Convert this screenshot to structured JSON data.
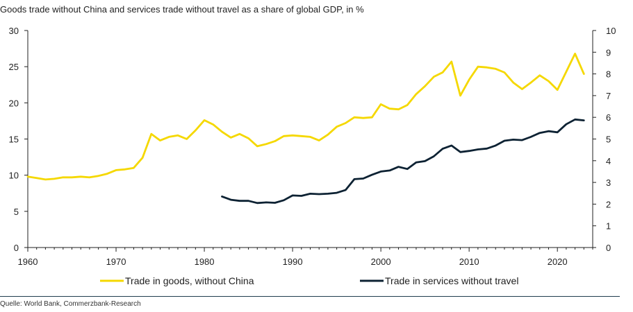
{
  "chart_data": {
    "type": "line",
    "title": "Goods trade without China and services trade without travel as a share of global GDP, in %",
    "source": "Quelle: World Bank, Commerzbank-Research",
    "x_ticks": [
      "1960",
      "1970",
      "1980",
      "1990",
      "2000",
      "2010",
      "2020"
    ],
    "y_left": {
      "ticks": [
        "0",
        "5",
        "10",
        "15",
        "20",
        "25",
        "30"
      ],
      "range": [
        0,
        30
      ]
    },
    "y_right": {
      "ticks": [
        "0",
        "1",
        "2",
        "3",
        "4",
        "5",
        "6",
        "7",
        "8",
        "9",
        "10"
      ],
      "range": [
        0,
        10
      ]
    },
    "xlim": [
      1960,
      2024
    ],
    "grid": false,
    "legend_position": "bottom",
    "series": [
      {
        "name": "Trade in goods, without China",
        "axis": "left",
        "color": "#f5d800",
        "x": [
          1960,
          1961,
          1962,
          1963,
          1964,
          1965,
          1966,
          1967,
          1968,
          1969,
          1970,
          1971,
          1972,
          1973,
          1974,
          1975,
          1976,
          1977,
          1978,
          1979,
          1980,
          1981,
          1982,
          1983,
          1984,
          1985,
          1986,
          1987,
          1988,
          1989,
          1990,
          1991,
          1992,
          1993,
          1994,
          1995,
          1996,
          1997,
          1998,
          1999,
          2000,
          2001,
          2002,
          2003,
          2004,
          2005,
          2006,
          2007,
          2008,
          2009,
          2010,
          2011,
          2012,
          2013,
          2014,
          2015,
          2016,
          2017,
          2018,
          2019,
          2020,
          2021,
          2022,
          2023
        ],
        "values": [
          9.8,
          9.6,
          9.4,
          9.5,
          9.7,
          9.7,
          9.8,
          9.7,
          9.9,
          10.2,
          10.7,
          10.8,
          11.0,
          12.4,
          15.7,
          14.8,
          15.3,
          15.5,
          15.0,
          16.2,
          17.6,
          17.0,
          16.0,
          15.2,
          15.7,
          15.1,
          14.0,
          14.3,
          14.7,
          15.4,
          15.5,
          15.4,
          15.3,
          14.8,
          15.6,
          16.7,
          17.2,
          18.0,
          17.9,
          18.0,
          19.8,
          19.2,
          19.1,
          19.7,
          21.2,
          22.3,
          23.6,
          24.2,
          25.7,
          21.0,
          23.2,
          25.0,
          24.9,
          24.7,
          24.2,
          22.8,
          21.9,
          22.8,
          23.8,
          23.0,
          21.8,
          24.3,
          26.8,
          24.0
        ]
      },
      {
        "name": "Trade in services without travel",
        "axis": "right",
        "color": "#0d2233",
        "x": [
          1982,
          1983,
          1984,
          1985,
          1986,
          1987,
          1988,
          1989,
          1990,
          1991,
          1992,
          1993,
          1994,
          1995,
          1996,
          1997,
          1998,
          1999,
          2000,
          2001,
          2002,
          2003,
          2004,
          2005,
          2006,
          2007,
          2008,
          2009,
          2010,
          2011,
          2012,
          2013,
          2014,
          2015,
          2016,
          2017,
          2018,
          2019,
          2020,
          2021,
          2022,
          2023
        ],
        "values": [
          2.35,
          2.2,
          2.15,
          2.15,
          2.05,
          2.08,
          2.06,
          2.18,
          2.4,
          2.38,
          2.48,
          2.46,
          2.48,
          2.52,
          2.65,
          3.15,
          3.18,
          3.35,
          3.5,
          3.55,
          3.72,
          3.62,
          3.92,
          3.98,
          4.2,
          4.55,
          4.7,
          4.4,
          4.45,
          4.52,
          4.56,
          4.7,
          4.92,
          4.97,
          4.95,
          5.1,
          5.28,
          5.36,
          5.31,
          5.68,
          5.9,
          5.86
        ]
      }
    ]
  }
}
